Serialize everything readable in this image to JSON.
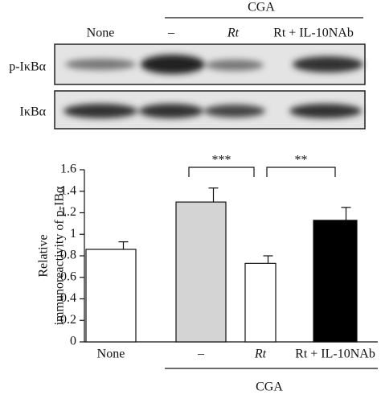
{
  "blot": {
    "group_label": "CGA",
    "lanes": [
      "None",
      "–",
      "Rt",
      "Rt + IL-10NAb"
    ],
    "rows": [
      "p-IκBα",
      "IκBα"
    ]
  },
  "chart_data": {
    "type": "bar",
    "ylabel": [
      "Relative",
      "immunoreactivity of p-IBα"
    ],
    "categories": [
      "None",
      "–",
      "Rt",
      "Rt + IL-10NAb"
    ],
    "group_label": "CGA",
    "values": [
      0.86,
      1.3,
      0.73,
      1.13
    ],
    "errors": [
      0.07,
      0.13,
      0.07,
      0.12
    ],
    "colors": [
      "#ffffff",
      "#d4d4d4",
      "#ffffff",
      "#000000"
    ],
    "ylim": [
      0,
      1.6
    ],
    "yticks": [
      0,
      0.2,
      0.4,
      0.6,
      0.8,
      1,
      1.2,
      1.4,
      1.6
    ],
    "annotations": [
      {
        "text": "***",
        "from": 1,
        "to": 2
      },
      {
        "text": "**",
        "from": 2,
        "to": 3
      }
    ]
  }
}
